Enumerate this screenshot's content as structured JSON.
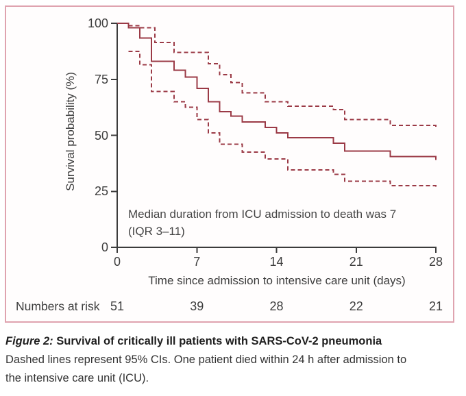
{
  "caption": {
    "label": "Figure 2:",
    "title": " Survival of critically ill patients with SARS-CoV-2 pneumonia",
    "body_line1": "Dashed lines represent 95% CIs. One patient died within 24 h after admission to",
    "body_line2": "the intensive care unit (ICU)."
  },
  "colors": {
    "curve": "#9b3a46",
    "frame_border": "#dfa3af",
    "axis": "#3c3c3c",
    "text": "#3d3d3d"
  },
  "chart_data": {
    "type": "line",
    "variant": "kaplan_meier_step",
    "title": "",
    "xlabel": "Time since admission to intensive care unit (days)",
    "ylabel": "Survival probability (%)",
    "xlim": [
      0,
      28
    ],
    "ylim": [
      0,
      100
    ],
    "xticks": [
      0,
      7,
      14,
      21,
      28
    ],
    "yticks": [
      100,
      75,
      50,
      25,
      0
    ],
    "grid": false,
    "legend": "none",
    "annotation_line1": "Median duration from ICU admission to death was 7",
    "annotation_line2": "(IQR 3–11)",
    "series": [
      {
        "name": "Survival estimate",
        "style": "solid",
        "steps": [
          [
            0,
            100
          ],
          [
            1,
            98
          ],
          [
            2,
            93.5
          ],
          [
            3,
            83
          ],
          [
            5,
            79
          ],
          [
            6,
            76
          ],
          [
            7,
            71
          ],
          [
            8,
            65
          ],
          [
            9,
            60.5
          ],
          [
            10,
            58.5
          ],
          [
            11,
            56
          ],
          [
            13,
            53.5
          ],
          [
            14,
            51
          ],
          [
            15,
            49
          ],
          [
            19,
            46.5
          ],
          [
            20,
            43
          ],
          [
            24,
            40.5
          ]
        ]
      },
      {
        "name": "Upper 95% CI",
        "style": "dashed",
        "steps": [
          [
            1,
            99
          ],
          [
            2,
            98
          ],
          [
            3.3,
            91.5
          ],
          [
            5,
            87
          ],
          [
            8,
            82
          ],
          [
            9,
            77
          ],
          [
            10,
            73.5
          ],
          [
            11,
            69
          ],
          [
            13,
            65
          ],
          [
            15,
            63
          ],
          [
            19,
            61.5
          ],
          [
            20,
            57
          ],
          [
            24,
            54.5
          ]
        ]
      },
      {
        "name": "Lower 95% CI",
        "style": "dashed",
        "steps": [
          [
            1,
            87.5
          ],
          [
            2,
            81.5
          ],
          [
            3,
            69.5
          ],
          [
            5,
            65
          ],
          [
            6,
            62.5
          ],
          [
            7,
            57
          ],
          [
            8,
            51
          ],
          [
            9,
            46
          ],
          [
            11,
            42.5
          ],
          [
            13,
            39.5
          ],
          [
            15,
            34.5
          ],
          [
            19,
            32.5
          ],
          [
            20,
            29.5
          ],
          [
            24,
            27.5
          ]
        ]
      }
    ],
    "numbers_at_risk": {
      "label": "Numbers at risk",
      "days": [
        0,
        7,
        14,
        21,
        28
      ],
      "values": [
        51,
        39,
        28,
        22,
        21
      ]
    }
  }
}
